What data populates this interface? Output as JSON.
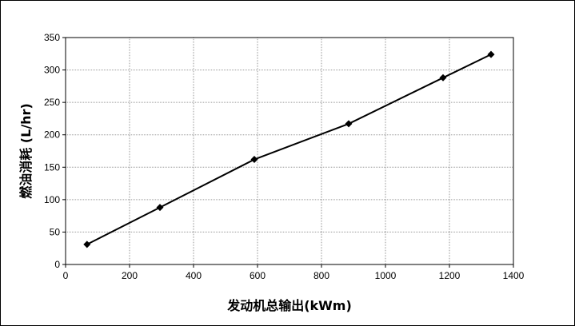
{
  "chart_data": {
    "type": "line",
    "xlabel": "发动机总输出(kWm)",
    "ylabel": "燃油消耗 (L/hr)",
    "xlim": [
      0,
      1400
    ],
    "ylim": [
      0,
      350
    ],
    "xticks": [
      0,
      200,
      400,
      600,
      800,
      1000,
      1200,
      1400
    ],
    "yticks": [
      0,
      50,
      100,
      150,
      200,
      250,
      300,
      350
    ],
    "grid": true,
    "series": [
      {
        "color": "#000000",
        "marker": "diamond",
        "x": [
          67,
          295,
          590,
          885,
          1180,
          1330
        ],
        "y": [
          31,
          88,
          162,
          217,
          288,
          324
        ]
      }
    ]
  }
}
